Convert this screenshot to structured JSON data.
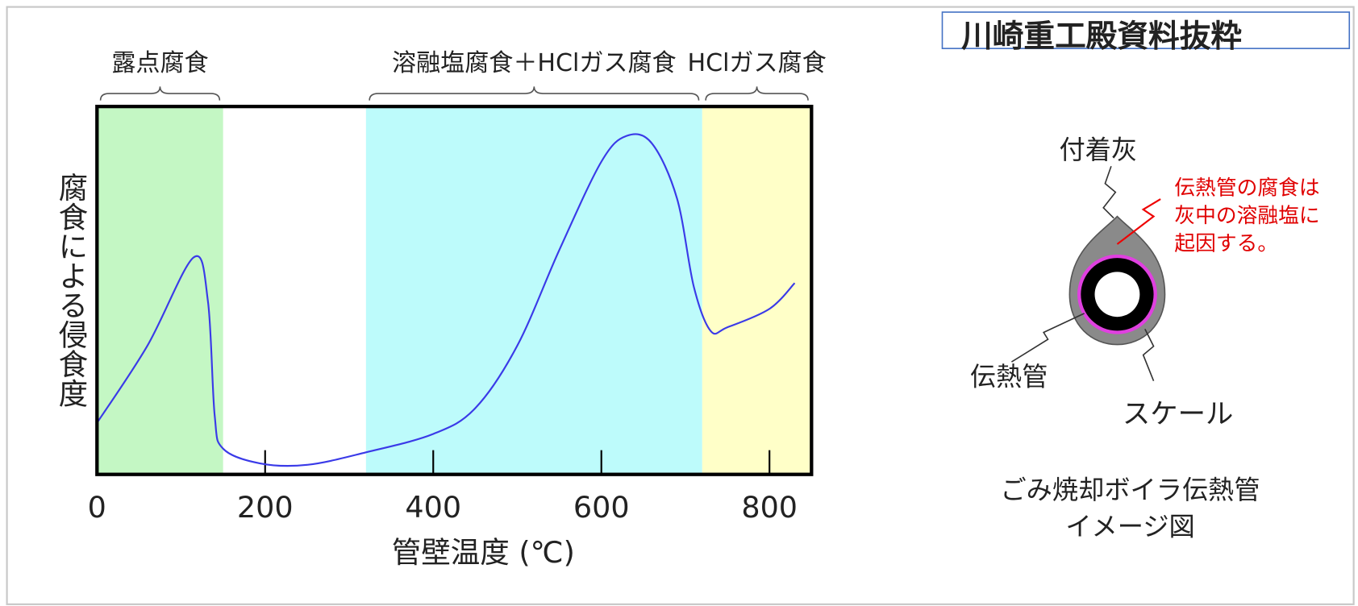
{
  "chart_data": {
    "type": "line",
    "y_label": "腐食による侵食度",
    "x_label": "管壁温度 (℃)",
    "xlim": [
      0,
      850
    ],
    "ylim": [
      0,
      100
    ],
    "xticks": [
      0,
      200,
      400,
      600,
      800
    ],
    "bands": [
      {
        "label": "露点腐食",
        "from": 0,
        "to": 150,
        "color": "#c4f7c4"
      },
      {
        "label": "溶融塩腐食＋HClガス腐食",
        "from": 320,
        "to": 720,
        "color": "#bdfbfb"
      },
      {
        "label": "HClガス腐食",
        "from": 720,
        "to": 850,
        "color": "#ffffc8"
      }
    ],
    "series": [
      {
        "color": "#3a3ae8",
        "x": [
          0,
          60,
          115,
          132,
          140,
          150,
          194,
          250,
          320,
          400,
          450,
          500,
          550,
          600,
          630,
          660,
          690,
          710,
          730,
          750,
          800,
          830
        ],
        "values": [
          14,
          35,
          59,
          47,
          16,
          7,
          3,
          2.6,
          6,
          11,
          18,
          35,
          61,
          85,
          92,
          90,
          75,
          51,
          39,
          40,
          45,
          52
        ]
      }
    ]
  },
  "header": {
    "source": "川崎重工殿資料抜粋"
  },
  "diagram": {
    "ash": "付着灰",
    "note": [
      "伝熱管の腐食は",
      "灰中の溶融塩に",
      "起因する。"
    ],
    "tube": "伝熱管",
    "scale": "スケール",
    "caption": [
      "ごみ焼却ボイラ伝熱管",
      "イメージ図"
    ]
  }
}
